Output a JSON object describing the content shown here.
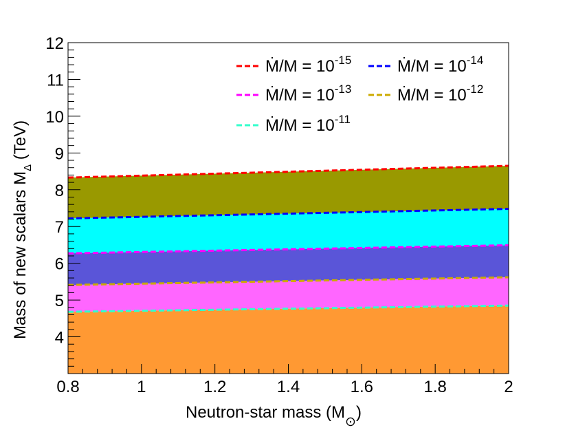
{
  "chart_data": {
    "type": "area",
    "title": "",
    "xlabel": "Neutron-star mass (M",
    "xlabel_sub": "⊙",
    "xlabel_close": ")",
    "ylabel": "Mass of new scalars M",
    "ylabel_sub": "Δ",
    "ylabel_unit": " (TeV)",
    "xlim": [
      0.8,
      2.0
    ],
    "ylim": [
      3.0,
      12.0
    ],
    "xticks": [
      0.8,
      1.0,
      1.2,
      1.4,
      1.6,
      1.8,
      2.0
    ],
    "xtick_labels": [
      "0.8",
      "1",
      "1.2",
      "1.4",
      "1.6",
      "1.8",
      "2"
    ],
    "yticks": [
      4,
      5,
      6,
      7,
      8,
      9,
      10,
      11,
      12
    ],
    "ytick_labels": [
      "4",
      "5",
      "6",
      "7",
      "8",
      "9",
      "10",
      "11",
      "12"
    ],
    "grid": false,
    "legend_position": "top-right",
    "x": [
      0.8,
      2.0
    ],
    "series": [
      {
        "name": "Ṁ/M = 10^-15",
        "rate_exp": "-15",
        "line_color": "#ff0000",
        "fill_color": "#999900",
        "values": [
          8.33,
          8.65
        ]
      },
      {
        "name": "Ṁ/M = 10^-14",
        "rate_exp": "-14",
        "line_color": "#0000ff",
        "fill_color": "#00ffff",
        "values": [
          7.22,
          7.48
        ]
      },
      {
        "name": "Ṁ/M = 10^-13",
        "rate_exp": "-13",
        "line_color": "#ff00ff",
        "fill_color": "#5a55d8",
        "values": [
          6.27,
          6.49
        ]
      },
      {
        "name": "Ṁ/M = 10^-12",
        "rate_exp": "-12",
        "line_color": "#ccaa00",
        "fill_color": "#ff66ff",
        "values": [
          5.41,
          5.62
        ]
      },
      {
        "name": "Ṁ/M = 10^-11",
        "rate_exp": "-11",
        "line_color": "#33ffcc",
        "fill_color": "#ff9933",
        "values": [
          4.68,
          4.85
        ]
      }
    ],
    "legend_prefix": "Ṁ/M = 10"
  }
}
